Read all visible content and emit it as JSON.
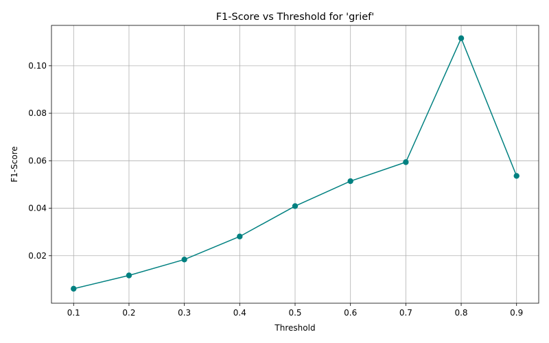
{
  "chart_data": {
    "type": "line",
    "title": "F1-Score vs Threshold for 'grief'",
    "xlabel": "Threshold",
    "ylabel": "F1-Score",
    "x": [
      0.1,
      0.2,
      0.3,
      0.4,
      0.5,
      0.6,
      0.7,
      0.8,
      0.9
    ],
    "series": [
      {
        "color": "#008080",
        "marker": "circle",
        "values": [
          0.0061,
          0.0117,
          0.0184,
          0.0281,
          0.0409,
          0.0514,
          0.0594,
          0.1116,
          0.0536
        ]
      }
    ],
    "xticks": [
      "0.1",
      "0.2",
      "0.3",
      "0.4",
      "0.5",
      "0.6",
      "0.7",
      "0.8",
      "0.9"
    ],
    "yticks": [
      "0.02",
      "0.04",
      "0.06",
      "0.08",
      "0.10"
    ],
    "xlim": [
      0.06,
      0.94
    ],
    "ylim": [
      0.0,
      0.117
    ],
    "grid": true,
    "legend": "none",
    "colors": {
      "line": "#008080",
      "grid": "#b0b0b0",
      "axis": "#000000"
    }
  }
}
